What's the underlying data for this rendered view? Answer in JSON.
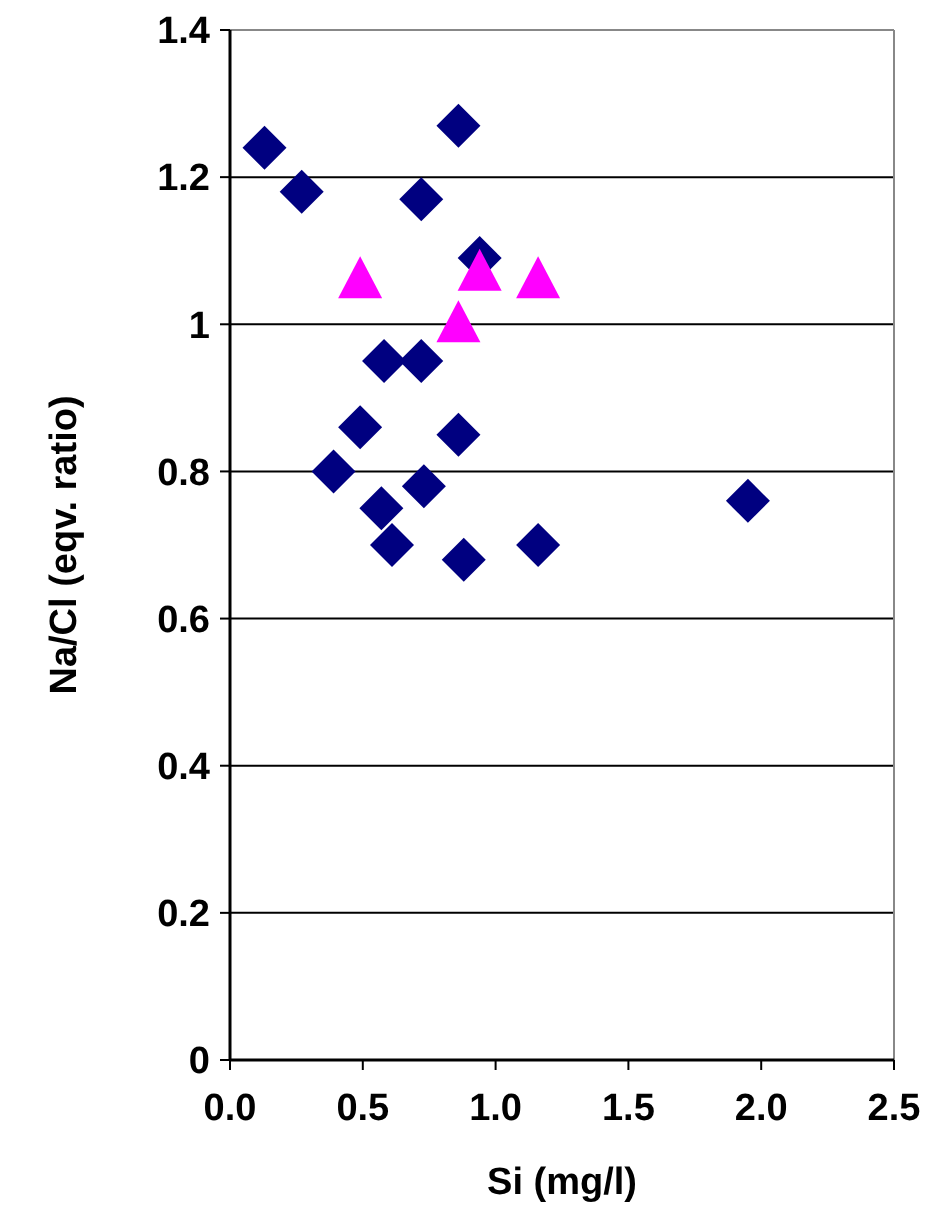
{
  "chart_data": {
    "type": "scatter",
    "xlabel": "Si (mg/l)",
    "ylabel": "Na/Cl (eqv. ratio)",
    "xlim": [
      0,
      2.5
    ],
    "xticks": [
      {
        "value": 0,
        "label": "0.0"
      },
      {
        "value": 0.5,
        "label": "0.5"
      },
      {
        "value": 1,
        "label": "1.0"
      },
      {
        "value": 1.5,
        "label": "1.5"
      },
      {
        "value": 2,
        "label": "2.0"
      },
      {
        "value": 2.5,
        "label": "2.5"
      }
    ],
    "ylim": [
      0,
      1.4
    ],
    "yticks": [
      0,
      0.2,
      0.4,
      0.6,
      0.8,
      1,
      1.2,
      1.4
    ],
    "grid": "y",
    "series": [
      {
        "color": "#000080",
        "marker": "diamond",
        "x": [
          0.13,
          0.27,
          0.86,
          0.72,
          0.94,
          0.58,
          0.72,
          0.49,
          0.86,
          0.39,
          0.73,
          0.57,
          0.61,
          0.88,
          1.16,
          1.95
        ],
        "values": [
          1.24,
          1.18,
          1.27,
          1.17,
          1.09,
          0.95,
          0.95,
          0.86,
          0.85,
          0.8,
          0.78,
          0.75,
          0.7,
          0.68,
          0.7,
          0.76
        ]
      },
      {
        "color": "#ff00ff",
        "marker": "triangle",
        "x": [
          0.49,
          0.94,
          1.16,
          0.86
        ],
        "values": [
          1.06,
          1.07,
          1.06,
          1.0
        ]
      }
    ]
  }
}
